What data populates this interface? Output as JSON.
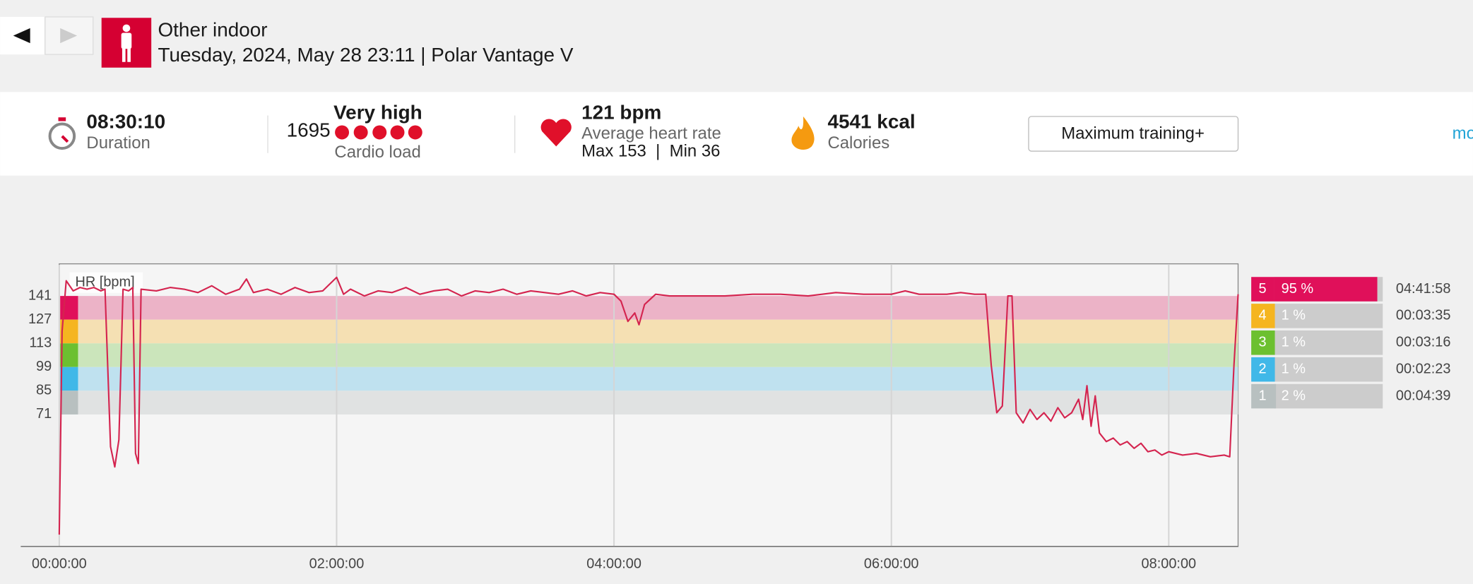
{
  "header": {
    "title": "Other indoor",
    "subtitle": "Tuesday, 2024, May 28 23:11 | Polar Vantage V"
  },
  "summary": {
    "duration": "08:30:10",
    "duration_label": "Duration",
    "cardio_load": "1695",
    "cardio_load_level": "Very high",
    "cardio_load_label": "Cardio load",
    "avg_hr": "121 bpm",
    "avg_hr_label": "Average heart rate",
    "max_min": "Max 153  |  Min 36",
    "calories": "4541 kcal",
    "calories_label": "Calories",
    "benefit": "Maximum training+",
    "more": "mo"
  },
  "chart_data": {
    "type": "line",
    "y_label": "HR [bpm]",
    "xlim": [
      0,
      8.5
    ],
    "ylim": [
      -7,
      160
    ],
    "xticks": [
      {
        "value": 0,
        "label": "00:00:00"
      },
      {
        "value": 2,
        "label": "02:00:00"
      },
      {
        "value": 4,
        "label": "04:00:00"
      },
      {
        "value": 6,
        "label": "06:00:00"
      },
      {
        "value": 8,
        "label": "08:00:00"
      }
    ],
    "yticks": [
      71,
      85,
      99,
      113,
      127,
      141
    ],
    "grid": true,
    "x": [
      0,
      0.02,
      0.05,
      0.1,
      0.15,
      0.2,
      0.25,
      0.3,
      0.33,
      0.37,
      0.4,
      0.43,
      0.46,
      0.5,
      0.53,
      0.55,
      0.57,
      0.59,
      0.7,
      0.8,
      0.9,
      1.0,
      1.1,
      1.2,
      1.3,
      1.35,
      1.4,
      1.5,
      1.6,
      1.7,
      1.8,
      1.9,
      2.0,
      2.05,
      2.1,
      2.2,
      2.3,
      2.4,
      2.5,
      2.6,
      2.7,
      2.8,
      2.9,
      3.0,
      3.1,
      3.2,
      3.3,
      3.4,
      3.5,
      3.6,
      3.7,
      3.8,
      3.9,
      4.0,
      4.05,
      4.1,
      4.15,
      4.18,
      4.22,
      4.3,
      4.4,
      4.5,
      4.6,
      4.8,
      5.0,
      5.2,
      5.4,
      5.6,
      5.8,
      6.0,
      6.1,
      6.2,
      6.4,
      6.5,
      6.6,
      6.68,
      6.72,
      6.76,
      6.8,
      6.84,
      6.87,
      6.9,
      6.95,
      7.0,
      7.05,
      7.1,
      7.15,
      7.2,
      7.25,
      7.3,
      7.35,
      7.38,
      7.41,
      7.44,
      7.47,
      7.5,
      7.55,
      7.6,
      7.65,
      7.7,
      7.75,
      7.8,
      7.85,
      7.9,
      7.95,
      8.0,
      8.1,
      8.2,
      8.3,
      8.4,
      8.44,
      8.47,
      8.5
    ],
    "series": [
      {
        "color": "#d4244f",
        "values": [
          0,
          120,
          150,
          144,
          146,
          145,
          146,
          144,
          145,
          52,
          40,
          56,
          145,
          144,
          146,
          48,
          42,
          145,
          144,
          146,
          145,
          143,
          147,
          142,
          145,
          151,
          143,
          145,
          142,
          146,
          143,
          144,
          152,
          142,
          145,
          141,
          144,
          143,
          146,
          142,
          144,
          145,
          141,
          144,
          143,
          145,
          142,
          144,
          143,
          142,
          144,
          141,
          143,
          142,
          138,
          126,
          131,
          124,
          136,
          142,
          141,
          141,
          141,
          141,
          142,
          142,
          141,
          143,
          142,
          142,
          144,
          142,
          142,
          143,
          142,
          142,
          100,
          72,
          76,
          141,
          141,
          72,
          66,
          74,
          68,
          72,
          67,
          75,
          69,
          72,
          80,
          68,
          88,
          64,
          82,
          60,
          55,
          57,
          53,
          55,
          51,
          54,
          49,
          50,
          47,
          49,
          47,
          48,
          46,
          47,
          46,
          100,
          142
        ]
      }
    ],
    "zones": [
      {
        "zone": "5",
        "lower": 127,
        "upper": 141,
        "color": "#e0105a",
        "band_color": "#ecb3c7",
        "pct": 95,
        "pct_label": "95 %",
        "time": "04:41:58"
      },
      {
        "zone": "4",
        "lower": 113,
        "upper": 127,
        "color": "#f5b520",
        "band_color": "#f5e0b3",
        "pct": 1,
        "pct_label": "1 %",
        "time": "00:03:35"
      },
      {
        "zone": "3",
        "lower": 99,
        "upper": 113,
        "color": "#6cc030",
        "band_color": "#cbe5bb",
        "pct": 1,
        "pct_label": "1 %",
        "time": "00:03:16"
      },
      {
        "zone": "2",
        "lower": 85,
        "upper": 99,
        "color": "#40b8e8",
        "band_color": "#bfe1ef",
        "pct": 1,
        "pct_label": "1 %",
        "time": "00:02:23"
      },
      {
        "zone": "1",
        "lower": 71,
        "upper": 85,
        "color": "#b8c0c0",
        "band_color": "#e0e2e2",
        "pct": 2,
        "pct_label": "2 %",
        "time": "00:04:39"
      }
    ]
  }
}
